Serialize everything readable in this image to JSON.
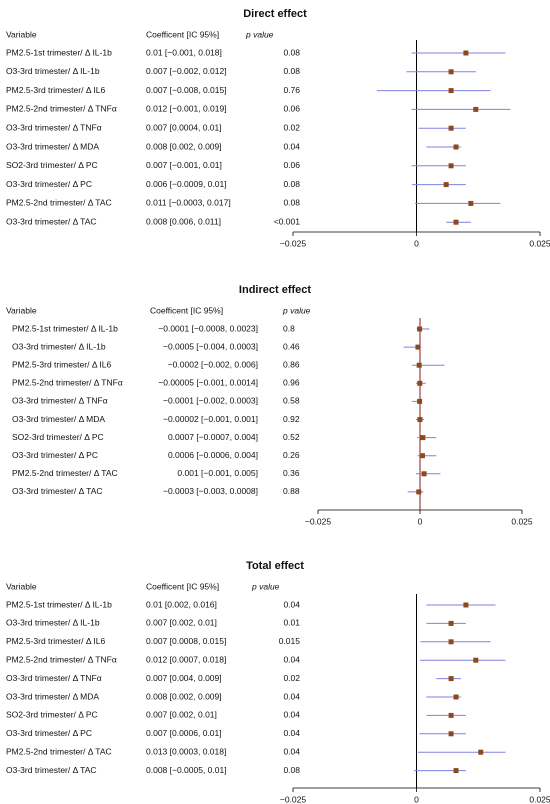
{
  "chart_data": [
    {
      "type": "forest",
      "title": "Direct effect",
      "columns": [
        "Variable",
        "Coefficent [IC 95%]",
        "p value"
      ],
      "categories": [
        "PM2.5-1st trimester/ Δ IL-1b",
        "O3-3rd trimester/ Δ IL-1b",
        "PM2.5-3rd trimester/ Δ IL6",
        "PM2.5-2nd trimester/ Δ TNFα",
        "O3-3rd trimester/ Δ TNFα",
        "O3-3rd trimester/ Δ MDA",
        "SO2-3rd trimester/ Δ PC",
        "O3-3rd trimester/ Δ PC",
        "PM2.5-2nd trimester/ Δ TAC",
        "O3-3rd trimester/ Δ TAC"
      ],
      "values": [
        0.01,
        0.007,
        0.007,
        0.012,
        0.007,
        0.008,
        0.007,
        0.006,
        0.011,
        0.008
      ],
      "lower": [
        -0.001,
        -0.002,
        -0.008,
        -0.001,
        0.0004,
        0.002,
        -0.001,
        -0.0009,
        -0.0003,
        0.006
      ],
      "upper": [
        0.018,
        0.012,
        0.015,
        0.019,
        0.01,
        0.009,
        0.01,
        0.01,
        0.017,
        0.011
      ],
      "value_labels": [
        "0.01 [−0.001, 0.018]",
        "0.007 [−0.002, 0.012]",
        "0.007 [−0.008, 0.015]",
        "0.012 [−0.001, 0.019]",
        "0.007 [0.0004, 0.01]",
        "0.008 [0.002, 0.009]",
        "0.007 [−0.001, 0.01]",
        "0.006 [−0.0009, 0.01]",
        "0.011 [−0.0003, 0.017]",
        "0.008 [0.006, 0.011]"
      ],
      "p_values": [
        "0.08",
        "0.08",
        "0.76",
        "0.06",
        "0.02",
        "0.04",
        "0.06",
        "0.08",
        "0.08",
        "<0.001"
      ],
      "xlim": [
        -0.025,
        0.025
      ],
      "xticks": [
        {
          "value": -0.025,
          "label": "−0.025"
        },
        0,
        0.025
      ],
      "color": "#8b4a1c",
      "ci_color": "#8080e0",
      "ref_color": "#000000"
    },
    {
      "type": "forest",
      "title": "Indirect effect",
      "columns": [
        "Variable",
        "Coefficent [IC 95%]",
        "p value"
      ],
      "categories": [
        "PM2.5-1st trimester/ Δ IL-1b",
        "O3-3rd trimester/ Δ IL-1b",
        "PM2.5-3rd trimester/ Δ IL6",
        "PM2.5-2nd trimester/ Δ TNFα",
        "O3-3rd trimester/ Δ TNFα",
        "O3-3rd trimester/ Δ MDA",
        "SO2-3rd trimester/ Δ PC",
        "O3-3rd trimester/ Δ PC",
        "PM2.5-2nd trimester/ Δ TAC",
        "O3-3rd trimester/ Δ TAC"
      ],
      "values": [
        -0.0001,
        -0.0005,
        -0.0002,
        -5e-05,
        -0.0001,
        -2e-05,
        0.0007,
        0.0006,
        0.001,
        -0.0003
      ],
      "lower": [
        -0.0008,
        -0.004,
        -0.002,
        -0.001,
        -0.002,
        -0.001,
        -0.0007,
        -0.0006,
        -0.001,
        -0.003
      ],
      "upper": [
        0.0023,
        0.0003,
        0.006,
        0.0014,
        0.0003,
        0.001,
        0.004,
        0.004,
        0.005,
        0.0008
      ],
      "value_labels": [
        "−0.0001 [−0.0008, 0.0023]",
        "−0.0005 [−0.004, 0.0003]",
        "−0.0002 [−0.002, 0.006]",
        "−0.00005 [−0.001, 0.0014]",
        "−0.0001 [−0.002, 0.0003]",
        "−0.00002 [−0.001, 0.001]",
        "0.0007 [−0.0007, 0.004]",
        "0.0006 [−0.0006, 0.004]",
        "0.001 [−0.001, 0.005]",
        "−0.0003 [−0.003, 0.0008]"
      ],
      "p_values": [
        "0.8",
        "0.46",
        "0.86",
        "0.96",
        "0.58",
        "0.92",
        "0.52",
        "0.26",
        "0.36",
        "0.88"
      ],
      "xlim": [
        -0.025,
        0.025
      ],
      "xticks": [
        {
          "value": -0.025,
          "label": "−0.025"
        },
        0,
        0.025
      ],
      "color": "#8b4a1c",
      "ci_color": "#8080e0",
      "ref_color": "#8b1a1a"
    },
    {
      "type": "forest",
      "title": "Total effect",
      "columns": [
        "Variable",
        "Coefficent [IC 95%]",
        "p value"
      ],
      "categories": [
        "PM2.5-1st trimester/ Δ IL-1b",
        "O3-3rd trimester/ Δ IL-1b",
        "PM2.5-3rd trimester/ Δ IL6",
        "PM2.5-2nd trimester/ Δ TNFα",
        "O3-3rd trimester/ Δ TNFα",
        "O3-3rd trimester/ Δ MDA",
        "SO2-3rd trimester/ Δ PC",
        "O3-3rd trimester/ Δ PC",
        "PM2.5-2nd trimester/ Δ TAC",
        "O3-3rd trimester/ Δ TAC"
      ],
      "values": [
        0.01,
        0.007,
        0.007,
        0.012,
        0.007,
        0.008,
        0.007,
        0.007,
        0.013,
        0.008
      ],
      "lower": [
        0.002,
        0.002,
        0.0008,
        0.0007,
        0.004,
        0.002,
        0.002,
        0.0006,
        0.0003,
        -0.0005
      ],
      "upper": [
        0.016,
        0.01,
        0.015,
        0.018,
        0.009,
        0.009,
        0.01,
        0.01,
        0.018,
        0.01
      ],
      "value_labels": [
        "0.01 [0.002, 0.016]",
        "0.007 [0.002, 0.01]",
        "0.007 [0.0008, 0.015]",
        "0.012 [0.0007, 0.018]",
        "0.007 [0.004, 0.009]",
        "0.008 [0.002, 0.009]",
        "0.007 [0.002, 0.01]",
        "0.007 [0.0006, 0.01]",
        "0.013 [0.0003, 0.018]",
        "0.008 [−0.0005, 0.01]"
      ],
      "p_values": [
        "0.04",
        "0.01",
        "0.015",
        "0.04",
        "0.02",
        "0.04",
        "0.04",
        "0.04",
        "0.04",
        "0.08"
      ],
      "xlim": [
        -0.025,
        0.025
      ],
      "xticks": [
        {
          "value": -0.025,
          "label": "−0.025"
        },
        0,
        0.025
      ],
      "color": "#8b4a1c",
      "ci_color": "#8080e0",
      "ref_color": "#000000"
    }
  ]
}
